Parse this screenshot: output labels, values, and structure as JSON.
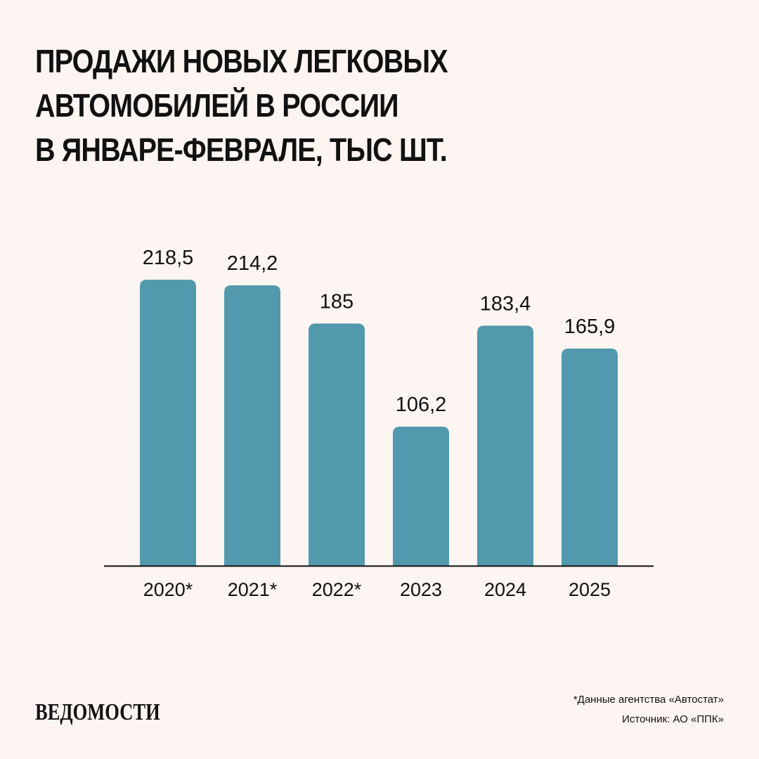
{
  "title_lines": [
    "ПРОДАЖИ НОВЫХ ЛЕГКОВЫХ",
    "АВТОМОБИЛЕЙ В РОССИИ",
    "В ЯНВАРЕ-ФЕВРАЛЕ, ТЫС ШТ."
  ],
  "footer": {
    "logo": "ВЕДОМОСТИ",
    "note": "*Данные агентства «Автостат»",
    "source": "Источник: АО «ППК»"
  },
  "colors": {
    "background": "#fcf5f1",
    "bar": "#5299ae",
    "text": "#111111",
    "axis": "#111111"
  },
  "chart_data": {
    "type": "bar",
    "title": "ПРОДАЖИ НОВЫХ ЛЕГКОВЫХ АВТОМОБИЛЕЙ В РОССИИ В ЯНВАРЕ-ФЕВРАЛЕ, ТЫС ШТ.",
    "categories": [
      "2020*",
      "2021*",
      "2022*",
      "2023",
      "2024",
      "2025"
    ],
    "values": [
      218.5,
      214.2,
      185,
      106.2,
      183.4,
      165.9
    ],
    "value_labels": [
      "218,5",
      "214,2",
      "185",
      "106,2",
      "183,4",
      "165,9"
    ],
    "xlabel": "",
    "ylabel": "",
    "ylim": [
      0,
      218.5
    ],
    "grid": false,
    "legend": "none"
  }
}
